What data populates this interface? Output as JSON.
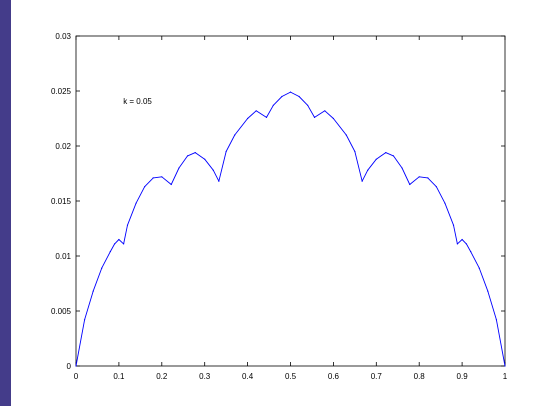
{
  "chart_data": {
    "type": "line",
    "title": "",
    "xlabel": "",
    "ylabel": "",
    "xlim": [
      0,
      1
    ],
    "ylim": [
      0,
      0.03
    ],
    "grid": false,
    "x_ticks": [
      0,
      0.1,
      0.2,
      0.3,
      0.4,
      0.5,
      0.6,
      0.7,
      0.8,
      0.9,
      1
    ],
    "x_tick_labels": [
      "0",
      "0.1",
      "0.2",
      "0.3",
      "0.4",
      "0.5",
      "0.6",
      "0.7",
      "0.8",
      "0.9",
      "1"
    ],
    "y_ticks": [
      0,
      0.005,
      0.01,
      0.015,
      0.02,
      0.025,
      0.03
    ],
    "y_tick_labels": [
      "0",
      "0.005",
      "0.01",
      "0.015",
      "0.02",
      "0.025",
      "0.03"
    ],
    "annotations": [
      {
        "text": "k = 0.05",
        "x": 0.11,
        "y": 0.0238
      }
    ],
    "series": [
      {
        "color": "#0000ff",
        "x": [
          0,
          0.02,
          0.04,
          0.06,
          0.08,
          0.09,
          0.1,
          0.111,
          0.12,
          0.14,
          0.16,
          0.18,
          0.2,
          0.222,
          0.24,
          0.26,
          0.278,
          0.3,
          0.32,
          0.333,
          0.35,
          0.37,
          0.4,
          0.42,
          0.444,
          0.46,
          0.48,
          0.5,
          0.52,
          0.54,
          0.556,
          0.58,
          0.6,
          0.63,
          0.65,
          0.667,
          0.68,
          0.7,
          0.722,
          0.74,
          0.76,
          0.778,
          0.8,
          0.82,
          0.84,
          0.86,
          0.88,
          0.889,
          0.9,
          0.91,
          0.92,
          0.94,
          0.96,
          0.98,
          1
        ],
        "y": [
          0,
          0.0042,
          0.0068,
          0.0089,
          0.0104,
          0.0111,
          0.0115,
          0.0111,
          0.0128,
          0.0148,
          0.0163,
          0.0171,
          0.0172,
          0.0165,
          0.018,
          0.0191,
          0.0194,
          0.0188,
          0.0178,
          0.0168,
          0.0195,
          0.021,
          0.0225,
          0.0232,
          0.0226,
          0.0237,
          0.0245,
          0.0249,
          0.0245,
          0.0237,
          0.0226,
          0.0232,
          0.0225,
          0.021,
          0.0195,
          0.0168,
          0.0178,
          0.0188,
          0.0194,
          0.0191,
          0.018,
          0.0165,
          0.0172,
          0.0171,
          0.0163,
          0.0148,
          0.0128,
          0.0111,
          0.0115,
          0.0111,
          0.0104,
          0.0089,
          0.0068,
          0.0042,
          0
        ]
      }
    ]
  }
}
